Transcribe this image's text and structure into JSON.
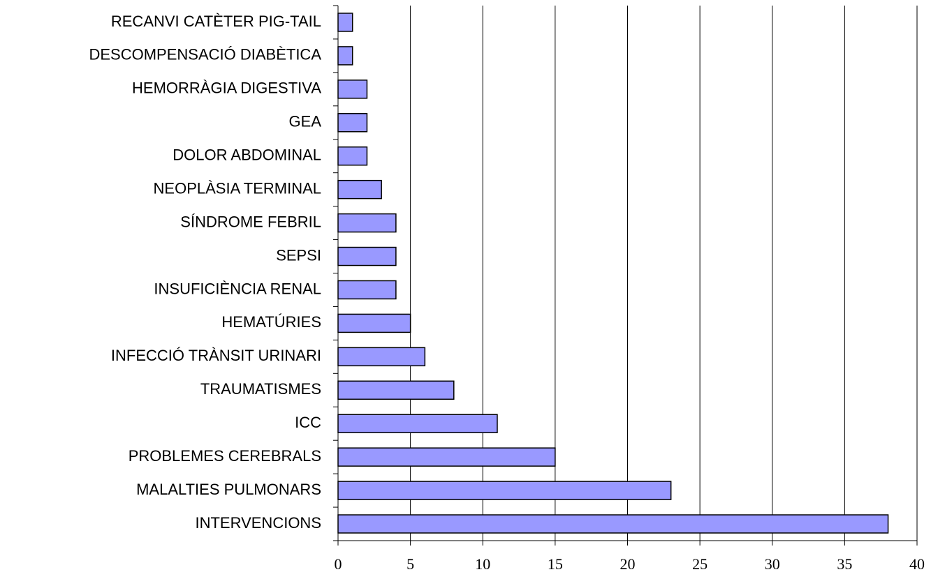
{
  "chart_data": {
    "type": "barh",
    "categories": [
      "RECANVI CATÈTER PIG-TAIL",
      "DESCOMPENSACIÓ DIABÈTICA",
      "HEMORRÀGIA DIGESTIVA",
      "GEA",
      "DOLOR ABDOMINAL",
      "NEOPLÀSIA TERMINAL",
      "SÍNDROME FEBRIL",
      "SEPSI",
      "INSUFICIÈNCIA RENAL",
      "HEMATÚRIES",
      "INFECCIÓ TRÀNSIT URINARI",
      "TRAUMATISMES",
      "ICC",
      "PROBLEMES CEREBRALS",
      "MALALTIES PULMONARS",
      "INTERVENCIONS"
    ],
    "values": [
      1,
      1,
      2,
      2,
      2,
      3,
      4,
      4,
      4,
      5,
      6,
      8,
      11,
      15,
      23,
      38
    ],
    "color": "#9999ff",
    "xlim": [
      0,
      40
    ],
    "xticks": [
      0,
      5,
      10,
      15,
      20,
      25,
      30,
      35,
      40
    ],
    "grid": true
  }
}
